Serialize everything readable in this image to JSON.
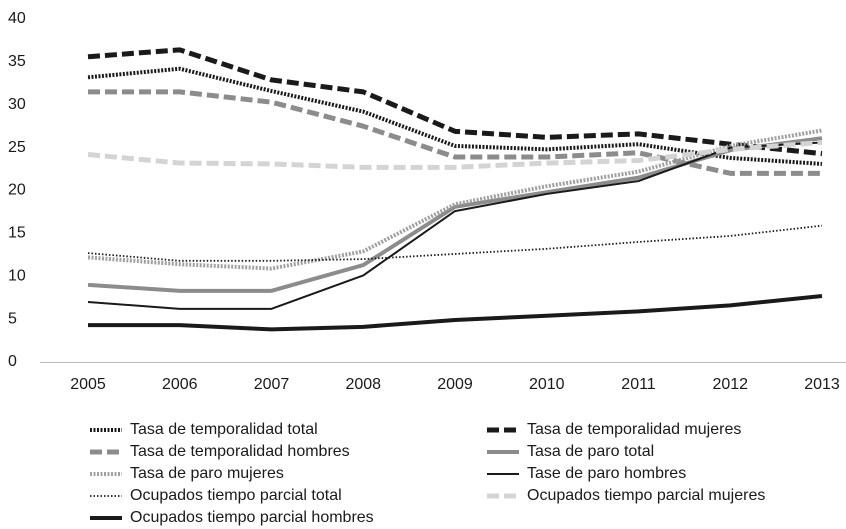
{
  "chart_data": {
    "type": "line",
    "categories": [
      "2005",
      "2006",
      "2007",
      "2008",
      "2009",
      "2010",
      "2011",
      "2012",
      "2013"
    ],
    "ylim": [
      0,
      40
    ],
    "yticks": [
      0,
      5,
      10,
      15,
      20,
      25,
      30,
      35,
      40
    ],
    "grid": false,
    "legend": "bottom",
    "series": [
      {
        "name": "Tasa de temporalidad total",
        "color": "#1a1a1a",
        "line_style": "dotted-thick",
        "values": [
          33.2,
          34.2,
          31.6,
          29.2,
          25.2,
          24.8,
          25.4,
          23.8,
          23.1
        ]
      },
      {
        "name": "Tasa de temporalidad mujeres",
        "color": "#1a1a1a",
        "line_style": "dashed-thick",
        "values": [
          35.6,
          36.4,
          32.9,
          31.5,
          26.9,
          26.2,
          26.6,
          25.4,
          24.3
        ]
      },
      {
        "name": "Tasa de temporalidad hombres",
        "color": "#8c8c8c",
        "line_style": "dashed-thick",
        "values": [
          31.5,
          31.5,
          30.3,
          27.5,
          23.9,
          23.9,
          24.4,
          22.0,
          22.0
        ]
      },
      {
        "name": "Tasa de paro total",
        "color": "#8c8c8c",
        "line_style": "solid-thick",
        "values": [
          9.0,
          8.3,
          8.3,
          11.3,
          18.1,
          19.8,
          21.5,
          24.7,
          26.1
        ]
      },
      {
        "name": "Tasa de paro mujeres",
        "color": "#a0a0a0",
        "line_style": "dotted-thick",
        "values": [
          12.2,
          11.4,
          10.9,
          12.9,
          18.4,
          20.5,
          22.2,
          25.2,
          27.0
        ]
      },
      {
        "name": "Tase de paro hombres",
        "color": "#1a1a1a",
        "line_style": "solid-thin",
        "values": [
          7.0,
          6.2,
          6.2,
          10.1,
          17.6,
          19.6,
          21.1,
          25.0,
          25.6
        ]
      },
      {
        "name": "Ocupados tiempo parcial total",
        "color": "#1a1a1a",
        "line_style": "dotted-thin",
        "values": [
          12.7,
          11.8,
          11.8,
          12.0,
          12.6,
          13.2,
          14.0,
          14.7,
          15.9
        ]
      },
      {
        "name": "Ocupados tiempo parcial mujeres",
        "color": "#d4d4d4",
        "line_style": "dashed-thick",
        "values": [
          24.2,
          23.2,
          23.1,
          22.7,
          22.7,
          23.2,
          23.5,
          24.8,
          25.6
        ]
      },
      {
        "name": "Ocupados tiempo parcial hombres",
        "color": "#1a1a1a",
        "line_style": "solid-thick",
        "values": [
          4.3,
          4.3,
          3.8,
          4.1,
          4.9,
          5.4,
          5.9,
          6.6,
          7.7
        ]
      }
    ]
  }
}
